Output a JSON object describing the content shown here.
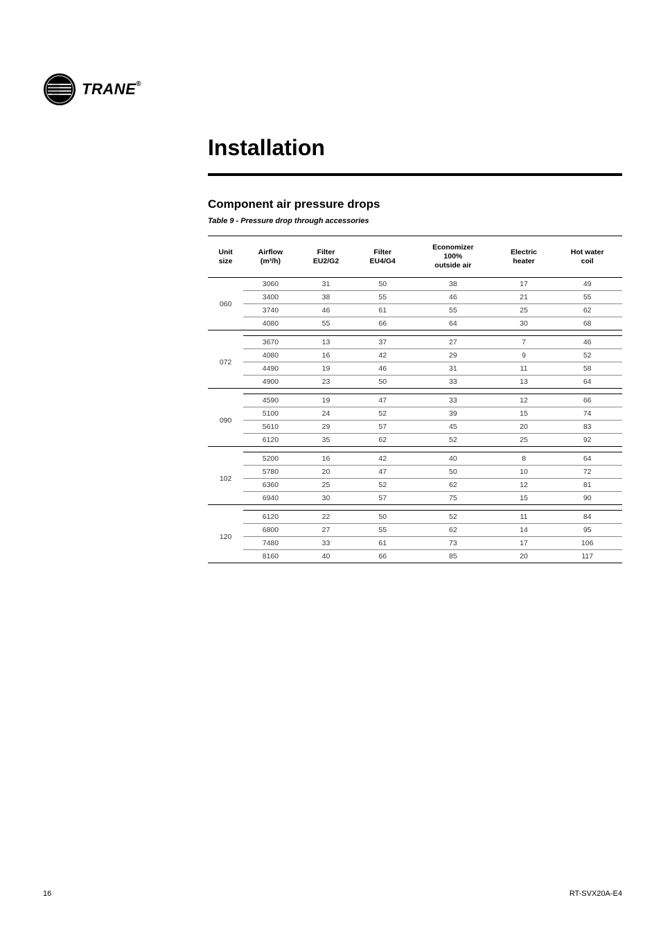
{
  "brand": "TRANE",
  "page_title": "Installation",
  "section_title": "Component air pressure drops",
  "table_caption": "Table 9 - Pressure drop through accessories",
  "page_number": "16",
  "doc_id": "RT-SVX20A-E4",
  "columns": [
    "Unit\nsize",
    "Airflow\n(m³/h)",
    "Filter\nEU2/G2",
    "Filter\nEU4/G4",
    "Economizer\n100%\noutside air",
    "Electric\nheater",
    "Hot water\ncoil"
  ],
  "groups": [
    {
      "unit": "060",
      "rows": [
        [
          "3060",
          "31",
          "50",
          "38",
          "17",
          "49"
        ],
        [
          "3400",
          "38",
          "55",
          "46",
          "21",
          "55"
        ],
        [
          "3740",
          "46",
          "61",
          "55",
          "25",
          "62"
        ],
        [
          "4080",
          "55",
          "66",
          "64",
          "30",
          "68"
        ]
      ]
    },
    {
      "unit": "072",
      "rows": [
        [
          "3670",
          "13",
          "37",
          "27",
          "7",
          "46"
        ],
        [
          "4080",
          "16",
          "42",
          "29",
          "9",
          "52"
        ],
        [
          "4490",
          "19",
          "46",
          "31",
          "11",
          "58"
        ],
        [
          "4900",
          "23",
          "50",
          "33",
          "13",
          "64"
        ]
      ]
    },
    {
      "unit": "090",
      "rows": [
        [
          "4590",
          "19",
          "47",
          "33",
          "12",
          "66"
        ],
        [
          "5100",
          "24",
          "52",
          "39",
          "15",
          "74"
        ],
        [
          "5610",
          "29",
          "57",
          "45",
          "20",
          "83"
        ],
        [
          "6120",
          "35",
          "62",
          "52",
          "25",
          "92"
        ]
      ]
    },
    {
      "unit": "102",
      "rows": [
        [
          "5200",
          "16",
          "42",
          "40",
          "8",
          "64"
        ],
        [
          "5780",
          "20",
          "47",
          "50",
          "10",
          "72"
        ],
        [
          "6360",
          "25",
          "52",
          "62",
          "12",
          "81"
        ],
        [
          "6940",
          "30",
          "57",
          "75",
          "15",
          "90"
        ]
      ]
    },
    {
      "unit": "120",
      "rows": [
        [
          "6120",
          "22",
          "50",
          "52",
          "11",
          "84"
        ],
        [
          "6800",
          "27",
          "55",
          "62",
          "14",
          "95"
        ],
        [
          "7480",
          "33",
          "61",
          "73",
          "17",
          "106"
        ],
        [
          "8160",
          "40",
          "66",
          "85",
          "20",
          "117"
        ]
      ]
    }
  ]
}
